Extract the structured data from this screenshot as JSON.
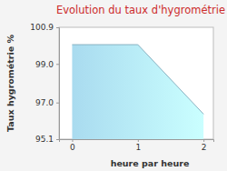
{
  "chart_data": {
    "type": "area",
    "title": "Evolution du taux d'hygrométrie",
    "x_label": "heure par heure",
    "y_label": "Taux hygrométrie %",
    "x": [
      0,
      1,
      2
    ],
    "values": [
      100.0,
      100.0,
      96.4
    ],
    "color": "#a9dbef",
    "xlim": [
      -0.2,
      2.15
    ],
    "xticks": [
      0,
      1,
      2
    ],
    "ylim": [
      95.1,
      100.9
    ],
    "yticks": [
      95.1,
      {
        "value": 97,
        "label": "97.0"
      },
      {
        "value": 99,
        "label": "99.0"
      },
      100.9
    ],
    "grid": false
  }
}
